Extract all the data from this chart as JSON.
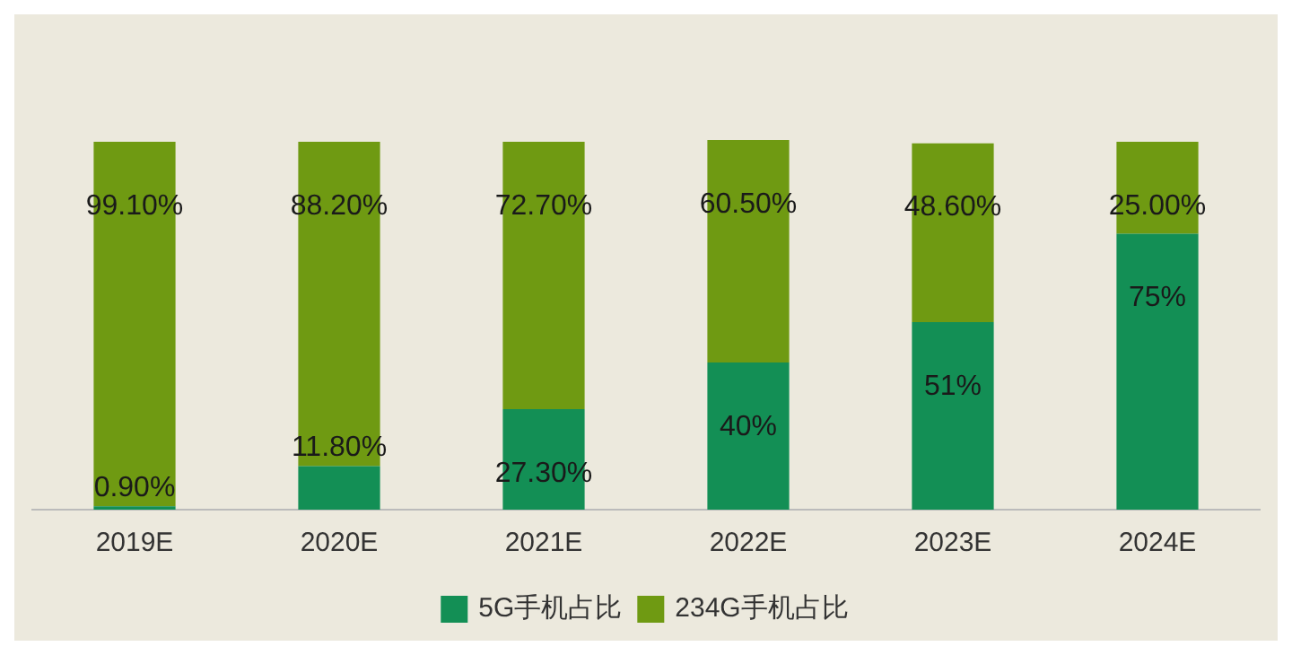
{
  "chart_data": {
    "type": "bar",
    "stacked": true,
    "categories": [
      "2019E",
      "2020E",
      "2021E",
      "2022E",
      "2023E",
      "2024E"
    ],
    "series": [
      {
        "name": "5G手机占比",
        "color": "#138f55",
        "values": [
          0.9,
          11.8,
          27.3,
          40,
          51,
          75
        ],
        "value_labels": [
          "0.90%",
          "11.80%",
          "27.30%",
          "40%",
          "51%",
          "75%"
        ]
      },
      {
        "name": "234G手机占比",
        "color": "#6f9a12",
        "values": [
          99.1,
          88.2,
          72.7,
          60.5,
          48.6,
          25
        ],
        "value_labels": [
          "99.10%",
          "88.20%",
          "72.70%",
          "60.50%",
          "48.60%",
          "25.00%"
        ]
      }
    ],
    "grid": false,
    "legend": "bottom"
  }
}
